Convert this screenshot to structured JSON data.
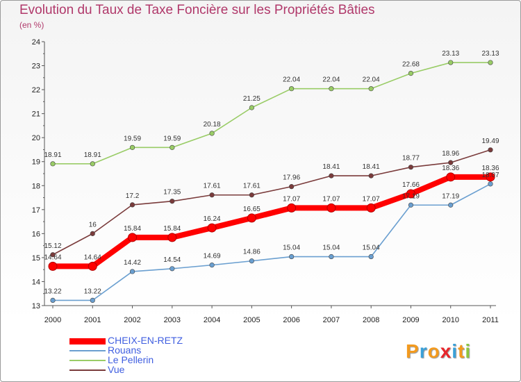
{
  "title": "Evolution du Taux de Taxe Foncière sur les Propriétés Bâties",
  "subtitle": "(en %)",
  "chart_data": {
    "type": "line",
    "ylim": [
      13,
      24
    ],
    "yticks": [
      13,
      14,
      15,
      16,
      17,
      18,
      19,
      20,
      21,
      22,
      23,
      24
    ],
    "x": [
      "2000",
      "2001",
      "2002",
      "2003",
      "2004",
      "2005",
      "2006",
      "2007",
      "2008",
      "2009",
      "2010",
      "2011"
    ],
    "grid": false,
    "legend_position": "bottom-left",
    "series": [
      {
        "name": "CHEIX-EN-RETZ",
        "color": "#ff0000",
        "values": [
          14.64,
          14.64,
          15.84,
          15.84,
          16.24,
          16.65,
          17.07,
          17.07,
          17.07,
          17.66,
          18.36,
          18.36
        ]
      },
      {
        "name": "Rouans",
        "color": "#6a9fd0",
        "values": [
          13.22,
          13.22,
          14.42,
          14.54,
          14.69,
          14.86,
          15.04,
          15.04,
          15.04,
          17.19,
          17.19,
          18.07
        ]
      },
      {
        "name": "Le Pellerin",
        "color": "#99cc66",
        "values": [
          18.91,
          18.91,
          19.59,
          19.59,
          20.18,
          21.25,
          22.04,
          22.04,
          22.04,
          22.68,
          23.13,
          23.13
        ]
      },
      {
        "name": "Vue",
        "color": "#7a3b3b",
        "values": [
          15.12,
          16,
          17.2,
          17.35,
          17.61,
          17.61,
          17.96,
          18.41,
          18.41,
          18.77,
          18.96,
          19.49
        ]
      }
    ]
  },
  "logo": {
    "letters": [
      "P",
      "r",
      "o",
      "x",
      "i",
      "t",
      "i"
    ],
    "colors": [
      "#f39a1e",
      "#3aa0d8",
      "#f39a1e",
      "#e8262b",
      "#3aa0d8",
      "#f39a1e",
      "#8cc63f"
    ]
  }
}
